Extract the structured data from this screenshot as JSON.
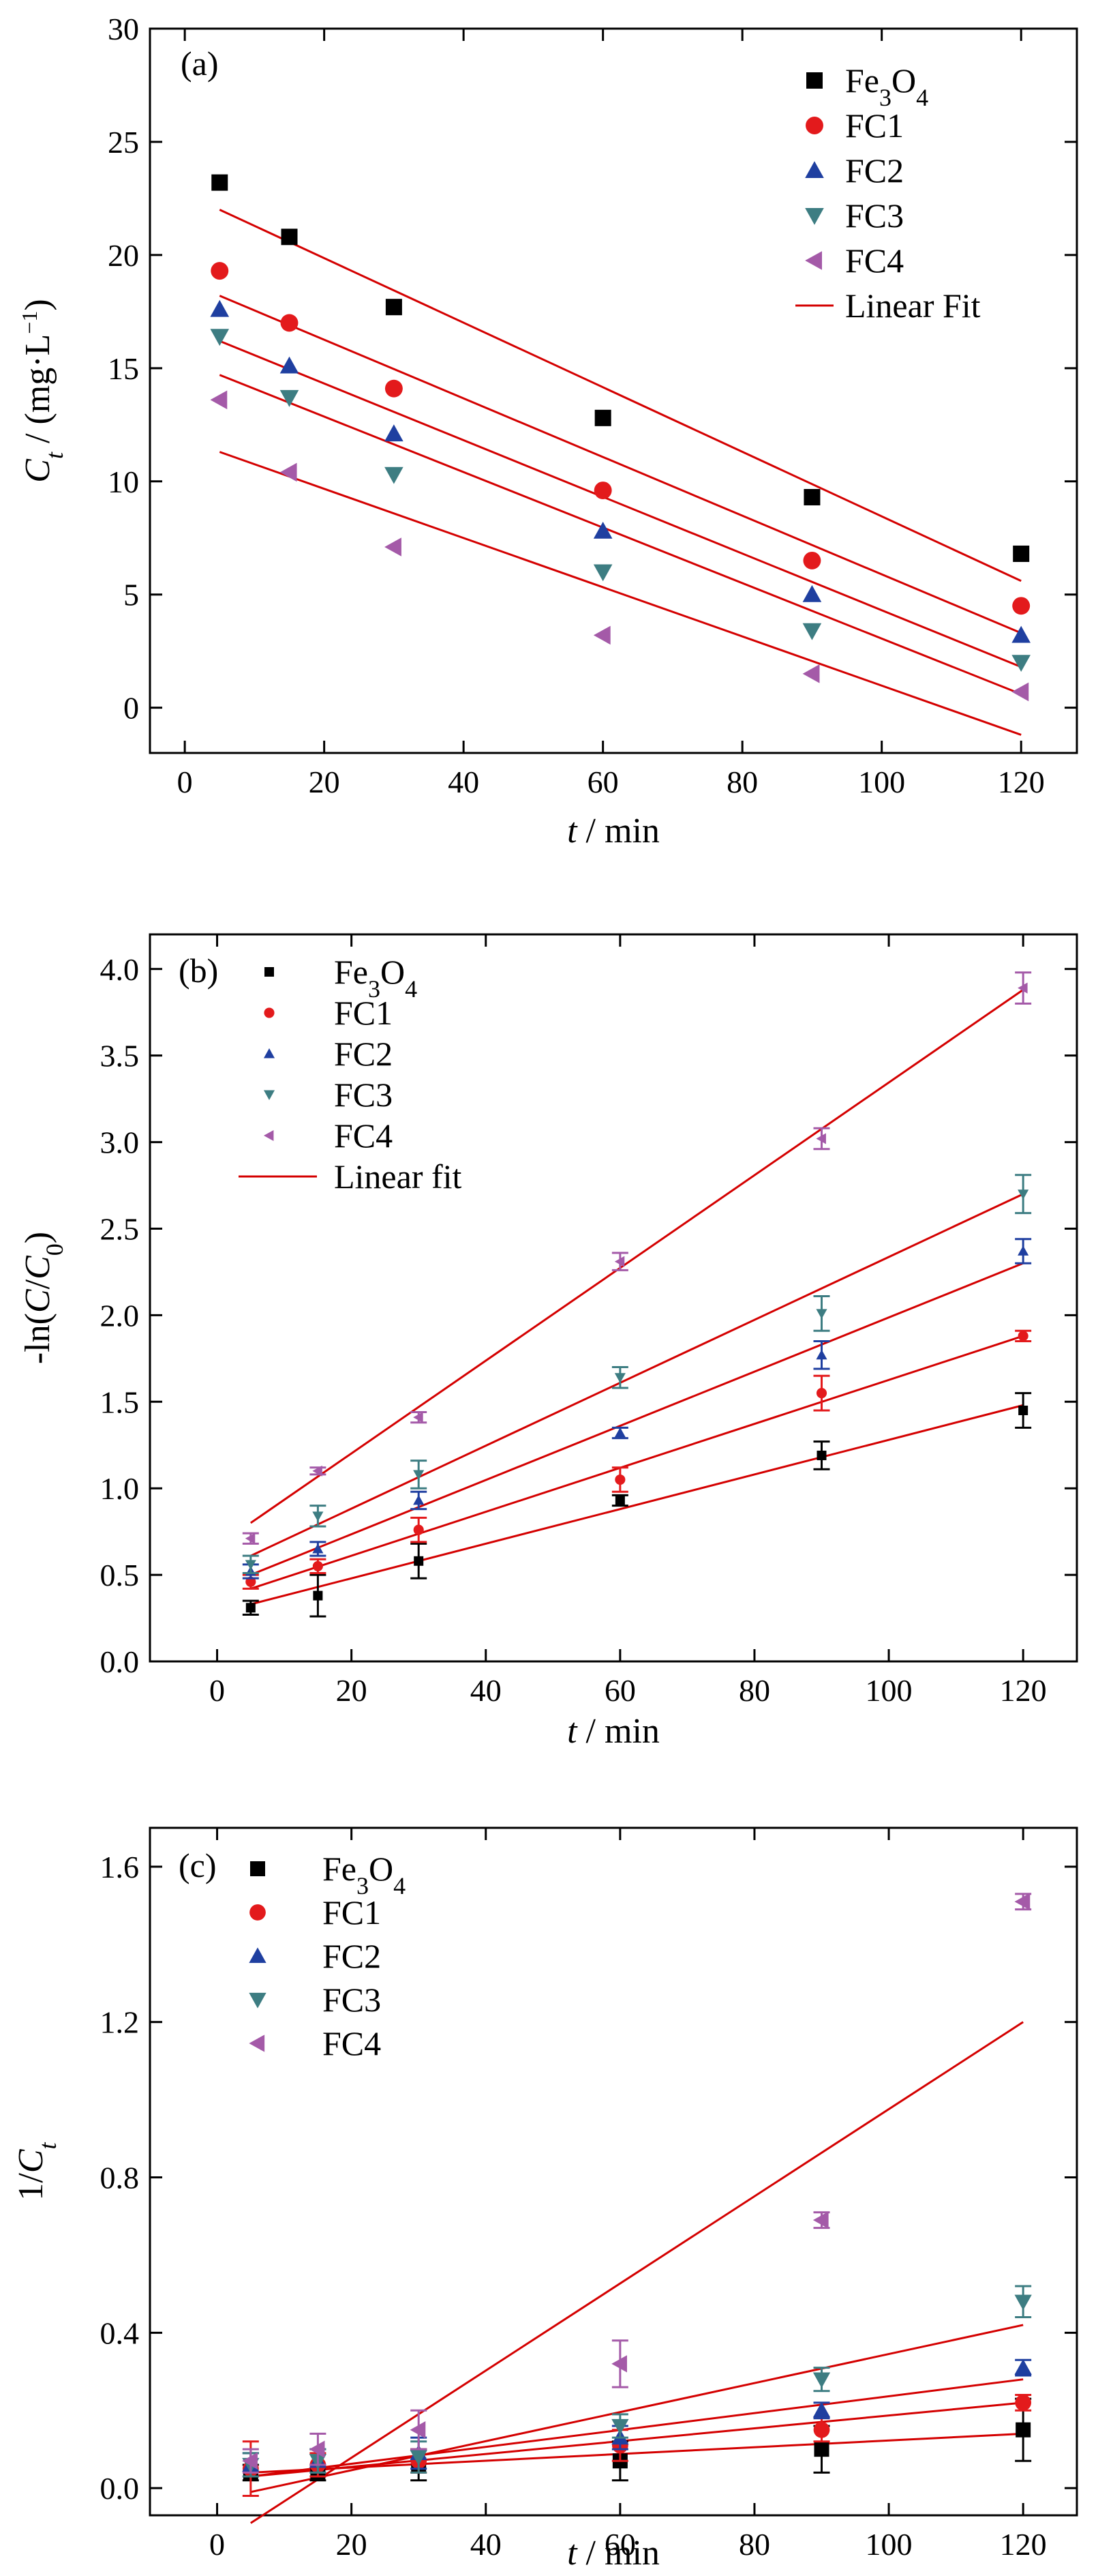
{
  "colors": {
    "Fe3O4": "#000000",
    "FC1": "#e31a1c",
    "FC2": "#1f3fa0",
    "FC3": "#3d7d82",
    "FC4": "#a45aa8",
    "fit": "#d40000",
    "axis": "#000000"
  },
  "chart_data": [
    {
      "type": "scatter",
      "panel_label": "(a)",
      "xlabel": "t / min",
      "ylabel": "C_t / (mg·L⁻¹)",
      "xlim": [
        -5,
        128
      ],
      "ylim": [
        -2,
        30
      ],
      "xticks": [
        0,
        20,
        40,
        60,
        80,
        100,
        120
      ],
      "yticks": [
        0,
        5,
        10,
        15,
        20,
        25,
        30
      ],
      "legend_placement": "top-right",
      "fit_label": "Linear Fit",
      "x": [
        5,
        15,
        30,
        60,
        90,
        120
      ],
      "series": [
        {
          "name": "Fe3O4",
          "marker": "square",
          "values": [
            23.2,
            20.8,
            17.7,
            12.8,
            9.3,
            6.8
          ],
          "fit": [
            22.0,
            5.6
          ]
        },
        {
          "name": "FC1",
          "marker": "circle",
          "values": [
            19.3,
            17.0,
            14.1,
            9.6,
            6.5,
            4.5
          ],
          "fit": [
            18.2,
            3.3
          ]
        },
        {
          "name": "FC2",
          "marker": "triangle-up",
          "values": [
            17.6,
            15.1,
            12.1,
            7.8,
            5.0,
            3.2
          ],
          "fit": [
            16.2,
            1.8
          ]
        },
        {
          "name": "FC3",
          "marker": "triangle-down",
          "values": [
            16.4,
            13.7,
            10.3,
            6.0,
            3.4,
            2.0
          ],
          "fit": [
            14.7,
            0.6
          ]
        },
        {
          "name": "FC4",
          "marker": "triangle-left",
          "values": [
            13.6,
            10.4,
            7.1,
            3.2,
            1.5,
            0.7
          ],
          "fit": [
            11.3,
            -1.2
          ]
        }
      ]
    },
    {
      "type": "scatter",
      "panel_label": "(b)",
      "xlabel": "t / min",
      "ylabel": "-ln(C/C₀)",
      "xlim": [
        -10,
        128
      ],
      "ylim": [
        0.0,
        4.2
      ],
      "xticks": [
        0,
        20,
        40,
        60,
        80,
        100,
        120
      ],
      "yticks": [
        0.0,
        0.5,
        1.0,
        1.5,
        2.0,
        2.5,
        3.0,
        3.5,
        4.0
      ],
      "legend_placement": "top-left",
      "fit_label": "Linear fit",
      "x": [
        5,
        15,
        30,
        60,
        90,
        120
      ],
      "series": [
        {
          "name": "Fe3O4",
          "marker": "square",
          "values": [
            0.31,
            0.38,
            0.58,
            0.93,
            1.19,
            1.45
          ],
          "errors": [
            0.04,
            0.12,
            0.1,
            0.03,
            0.08,
            0.1
          ],
          "fit": [
            0.33,
            1.48
          ]
        },
        {
          "name": "FC1",
          "marker": "circle",
          "values": [
            0.46,
            0.55,
            0.76,
            1.05,
            1.55,
            1.88
          ],
          "errors": [
            0.04,
            0.04,
            0.07,
            0.07,
            0.1,
            0.03
          ],
          "fit": [
            0.42,
            1.88
          ]
        },
        {
          "name": "FC2",
          "marker": "triangle-up",
          "values": [
            0.52,
            0.65,
            0.93,
            1.32,
            1.77,
            2.37
          ],
          "errors": [
            0.04,
            0.04,
            0.05,
            0.03,
            0.08,
            0.07
          ],
          "fit": [
            0.5,
            2.3
          ]
        },
        {
          "name": "FC3",
          "marker": "triangle-down",
          "values": [
            0.56,
            0.84,
            1.08,
            1.64,
            2.01,
            2.7
          ],
          "errors": [
            0.05,
            0.06,
            0.08,
            0.06,
            0.1,
            0.11
          ],
          "fit": [
            0.61,
            2.7
          ]
        },
        {
          "name": "FC4",
          "marker": "triangle-left",
          "values": [
            0.71,
            1.1,
            1.41,
            2.31,
            3.02,
            3.89
          ],
          "errors": [
            0.03,
            0.02,
            0.03,
            0.05,
            0.06,
            0.09
          ],
          "fit": [
            0.8,
            3.88
          ]
        }
      ]
    },
    {
      "type": "scatter",
      "panel_label": "(c)",
      "xlabel": "t / min",
      "ylabel": "1/C_t",
      "xlim": [
        -10,
        128
      ],
      "ylim": [
        -0.07,
        1.7
      ],
      "xticks": [
        0,
        20,
        40,
        60,
        80,
        100,
        120
      ],
      "yticks": [
        0.0,
        0.4,
        0.8,
        1.2,
        1.6
      ],
      "legend_placement": "top-left",
      "x": [
        5,
        15,
        30,
        60,
        90,
        120
      ],
      "series": [
        {
          "name": "Fe3O4",
          "marker": "square",
          "values": [
            0.04,
            0.04,
            0.06,
            0.07,
            0.1,
            0.15
          ],
          "errors": [
            0.02,
            0.02,
            0.04,
            0.05,
            0.06,
            0.08
          ],
          "fit": [
            0.04,
            0.14
          ]
        },
        {
          "name": "FC1",
          "marker": "circle",
          "values": [
            0.05,
            0.06,
            0.07,
            0.11,
            0.15,
            0.22
          ],
          "errors": [
            0.07,
            0.03,
            0.03,
            0.04,
            0.03,
            0.02
          ],
          "fit": [
            0.03,
            0.22
          ]
        },
        {
          "name": "FC2",
          "marker": "triangle-up",
          "values": [
            0.06,
            0.07,
            0.09,
            0.13,
            0.2,
            0.31
          ],
          "errors": [
            0.03,
            0.03,
            0.04,
            0.03,
            0.02,
            0.02
          ],
          "fit": [
            0.03,
            0.28
          ]
        },
        {
          "name": "FC3",
          "marker": "triangle-down",
          "values": [
            0.06,
            0.07,
            0.08,
            0.16,
            0.28,
            0.48
          ],
          "errors": [
            0.03,
            0.03,
            0.04,
            0.03,
            0.03,
            0.04
          ],
          "fit": [
            -0.01,
            0.42
          ]
        },
        {
          "name": "FC4",
          "marker": "triangle-left",
          "values": [
            0.07,
            0.1,
            0.15,
            0.32,
            0.69,
            1.51
          ],
          "errors": [
            0.03,
            0.04,
            0.05,
            0.06,
            0.02,
            0.02
          ],
          "fit": [
            -0.09,
            1.2
          ]
        }
      ]
    }
  ]
}
